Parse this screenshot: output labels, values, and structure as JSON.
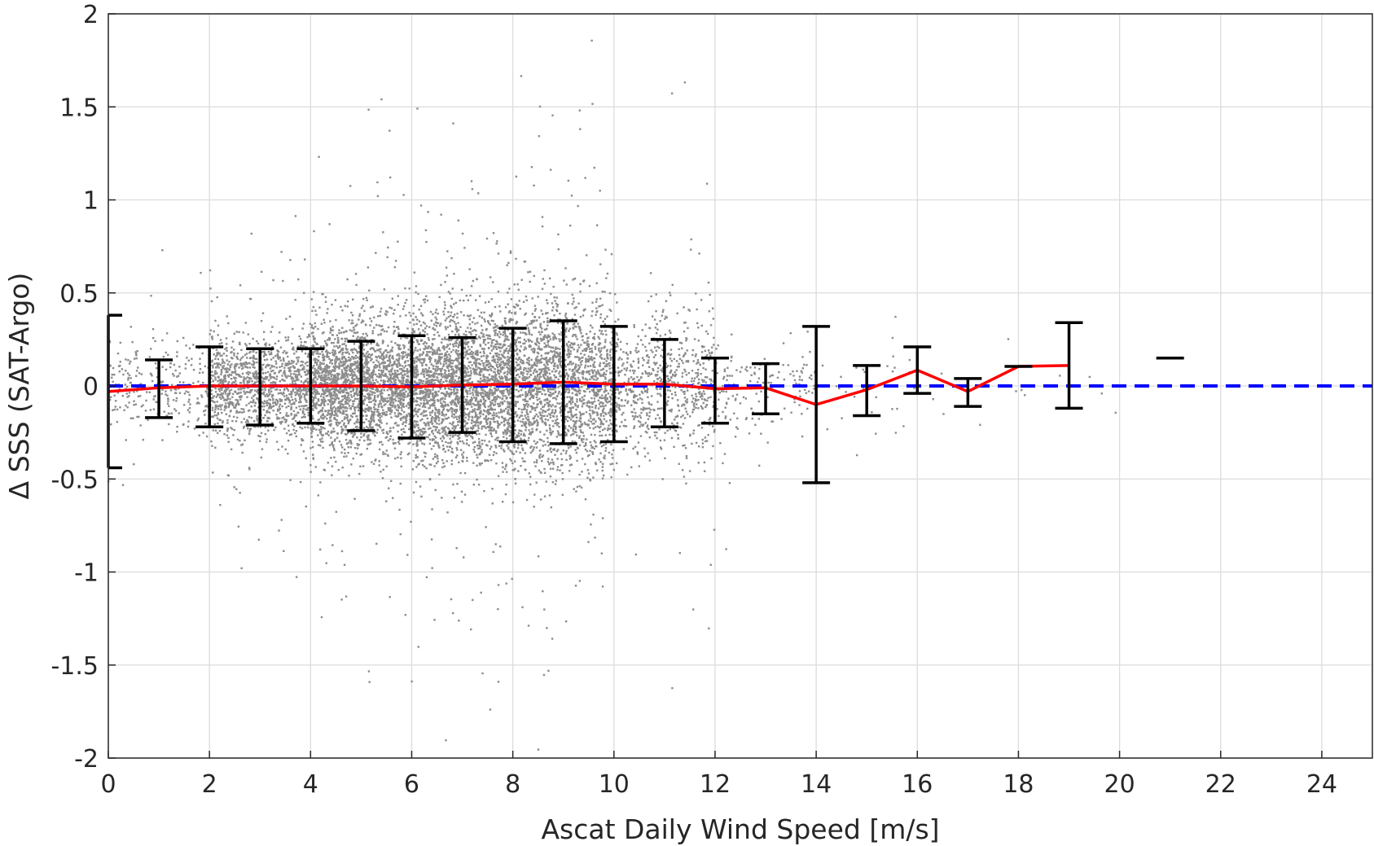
{
  "chart_data": {
    "type": "scatter",
    "title": "",
    "xlabel": "Ascat Daily Wind Speed [m/s]",
    "ylabel": "Δ SSS (SAT-Argo)",
    "xlim": [
      0,
      25
    ],
    "ylim": [
      -2,
      2
    ],
    "xticks": [
      0,
      2,
      4,
      6,
      8,
      10,
      12,
      14,
      16,
      18,
      20,
      22,
      24
    ],
    "xtick_labels": [
      "0",
      "2",
      "4",
      "6",
      "8",
      "10",
      "12",
      "14",
      "16",
      "18",
      "20",
      "22",
      "24"
    ],
    "yticks": [
      -2,
      -1.5,
      -1,
      -0.5,
      0,
      0.5,
      1,
      1.5,
      2
    ],
    "ytick_labels": [
      "-2",
      "-1.5",
      "-1",
      "-0.5",
      "0",
      "0.5",
      "1",
      "1.5",
      "2"
    ],
    "grid": true,
    "colors": {
      "scatter": "#8c8c8c",
      "mean_line": "#ff0000",
      "zero_line": "#0000ff",
      "errorbar": "#000000",
      "grid": "#dcdcdc",
      "axis": "#262626"
    },
    "scatter_description_level": "dense cloud centred near 0, spread largest between 5 and 10 m/s",
    "scatter_spread_by_wind": [
      {
        "x_range": [
          0,
          2
        ],
        "n": 260,
        "sd": 0.12
      },
      {
        "x_range": [
          2,
          4
        ],
        "n": 1200,
        "sd": 0.14
      },
      {
        "x_range": [
          4,
          6
        ],
        "n": 2200,
        "sd": 0.17
      },
      {
        "x_range": [
          6,
          8
        ],
        "n": 2400,
        "sd": 0.2
      },
      {
        "x_range": [
          8,
          10
        ],
        "n": 1900,
        "sd": 0.23
      },
      {
        "x_range": [
          10,
          12
        ],
        "n": 700,
        "sd": 0.18
      },
      {
        "x_range": [
          12,
          14
        ],
        "n": 160,
        "sd": 0.12
      },
      {
        "x_range": [
          14,
          16
        ],
        "n": 30,
        "sd": 0.15
      },
      {
        "x_range": [
          16,
          20
        ],
        "n": 12,
        "sd": 0.15
      }
    ],
    "zero_line": {
      "y": 0,
      "style": "dashed"
    },
    "mean_line": {
      "x": [
        0,
        1,
        2,
        3,
        4,
        5,
        6,
        7,
        8,
        9,
        10,
        11,
        12,
        13,
        14,
        15,
        16,
        17,
        18,
        19
      ],
      "y": [
        -0.03,
        -0.01,
        0.0,
        0.0,
        0.0,
        0.0,
        -0.005,
        0.005,
        0.01,
        0.02,
        0.01,
        0.01,
        -0.015,
        -0.01,
        -0.1,
        -0.02,
        0.085,
        -0.03,
        0.105,
        0.11
      ]
    },
    "error_bars": [
      {
        "x": 0,
        "low": -0.44,
        "high": 0.38
      },
      {
        "x": 1,
        "low": -0.17,
        "high": 0.14
      },
      {
        "x": 2,
        "low": -0.22,
        "high": 0.21
      },
      {
        "x": 3,
        "low": -0.21,
        "high": 0.2
      },
      {
        "x": 4,
        "low": -0.2,
        "high": 0.2
      },
      {
        "x": 5,
        "low": -0.24,
        "high": 0.24
      },
      {
        "x": 6,
        "low": -0.28,
        "high": 0.27
      },
      {
        "x": 7,
        "low": -0.25,
        "high": 0.26
      },
      {
        "x": 8,
        "low": -0.3,
        "high": 0.31
      },
      {
        "x": 9,
        "low": -0.31,
        "high": 0.35
      },
      {
        "x": 10,
        "low": -0.3,
        "high": 0.32
      },
      {
        "x": 11,
        "low": -0.22,
        "high": 0.25
      },
      {
        "x": 12,
        "low": -0.2,
        "high": 0.15
      },
      {
        "x": 13,
        "low": -0.15,
        "high": 0.12
      },
      {
        "x": 14,
        "low": -0.52,
        "high": 0.32
      },
      {
        "x": 15,
        "low": -0.16,
        "high": 0.11
      },
      {
        "x": 16,
        "low": -0.04,
        "high": 0.21
      },
      {
        "x": 17,
        "low": -0.11,
        "high": 0.04
      },
      {
        "x": 18,
        "low": 0.105,
        "high": 0.105
      },
      {
        "x": 19,
        "low": -0.12,
        "high": 0.34
      },
      {
        "x": 21,
        "low": 0.15,
        "high": 0.15
      }
    ]
  }
}
